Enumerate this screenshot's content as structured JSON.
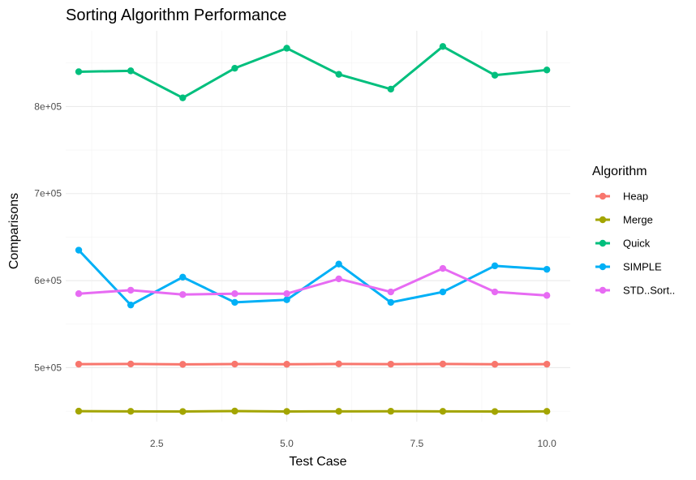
{
  "chart_data": {
    "type": "line",
    "title": "Sorting Algorithm Performance",
    "xlabel": "Test Case",
    "ylabel": "Comparisons",
    "x": [
      1,
      2,
      3,
      4,
      5,
      6,
      7,
      8,
      9,
      10
    ],
    "xlim": [
      0.75,
      10.45
    ],
    "ylim": [
      438000,
      887000
    ],
    "x_ticks": [
      2.5,
      5.0,
      7.5,
      10.0
    ],
    "x_tick_labels": [
      "2.5",
      "5.0",
      "7.5",
      "10.0"
    ],
    "y_ticks": [
      500000,
      600000,
      700000,
      800000
    ],
    "y_tick_labels": [
      "5e+05",
      "6e+05",
      "7e+05",
      "8e+05"
    ],
    "grid": true,
    "legend_title": "Algorithm",
    "legend_position": "right",
    "series": [
      {
        "name": "Heap",
        "color": "#F8766D",
        "values": [
          504000,
          504200,
          503800,
          504100,
          503900,
          504300,
          504000,
          504200,
          503900,
          504000
        ]
      },
      {
        "name": "Merge",
        "color": "#A3A500",
        "values": [
          450000,
          449800,
          449600,
          450100,
          449700,
          449800,
          449900,
          449800,
          449600,
          449800
        ]
      },
      {
        "name": "Quick",
        "color": "#00BF7D",
        "values": [
          840000,
          841000,
          810000,
          844000,
          867000,
          837000,
          820000,
          869000,
          836000,
          842000
        ]
      },
      {
        "name": "SIMPLE",
        "color": "#00B0F6",
        "values": [
          635000,
          572000,
          604000,
          575000,
          578000,
          619000,
          575000,
          587000,
          617000,
          613000
        ]
      },
      {
        "name": "STD..Sort..",
        "color": "#E76BF3",
        "values": [
          585000,
          589000,
          584000,
          585000,
          585000,
          602000,
          587000,
          614000,
          587000,
          583000
        ]
      }
    ]
  }
}
